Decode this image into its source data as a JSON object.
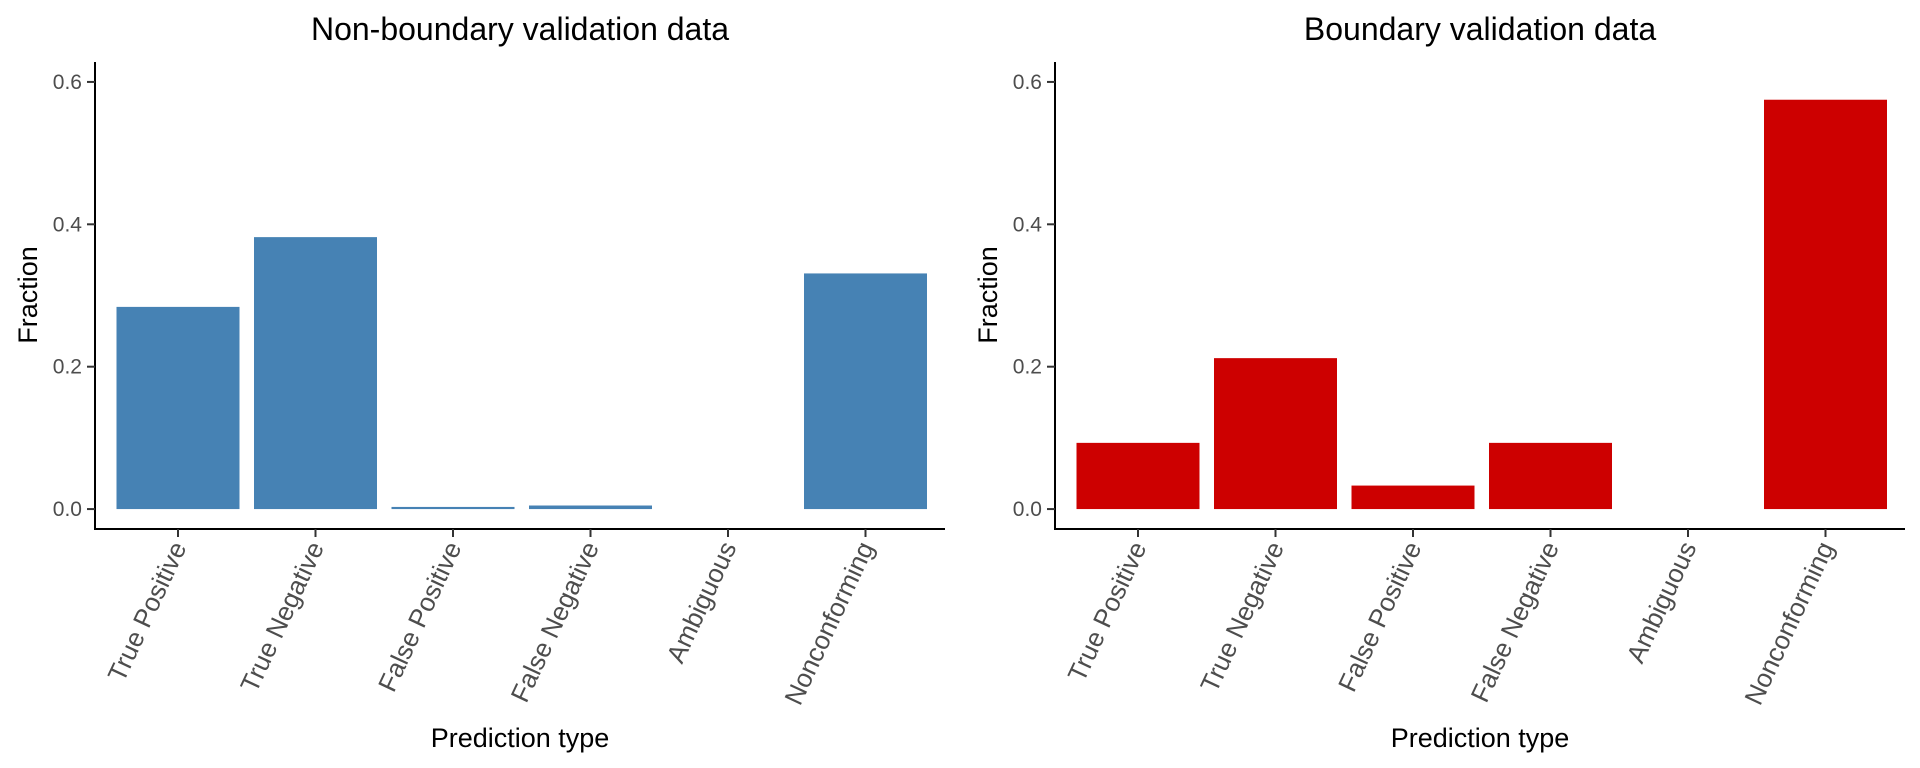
{
  "chart_data": [
    {
      "type": "bar",
      "title": "Non-boundary validation data",
      "xlabel": "Prediction type",
      "ylabel": "Fraction",
      "categories": [
        "True Positive",
        "True Negative",
        "False Positive",
        "False Negative",
        "Ambiguous",
        "Nonconforming"
      ],
      "values": [
        0.284,
        0.382,
        0.003,
        0.005,
        0.0,
        0.331
      ],
      "yticks": [
        "0.0",
        "0.2",
        "0.4",
        "0.6"
      ],
      "ylim": [
        -0.028,
        0.628
      ],
      "color": "#4682B4",
      "grid": false,
      "legend": "none"
    },
    {
      "type": "bar",
      "title": "Boundary validation data",
      "xlabel": "Prediction type",
      "ylabel": "Fraction",
      "categories": [
        "True Positive",
        "True Negative",
        "False Positive",
        "False Negative",
        "Ambiguous",
        "Nonconforming"
      ],
      "values": [
        0.093,
        0.212,
        0.033,
        0.093,
        0.0,
        0.575
      ],
      "yticks": [
        "0.0",
        "0.2",
        "0.4",
        "0.6"
      ],
      "ylim": [
        -0.028,
        0.628
      ],
      "color": "#CD0000",
      "grid": false,
      "legend": "none"
    }
  ]
}
